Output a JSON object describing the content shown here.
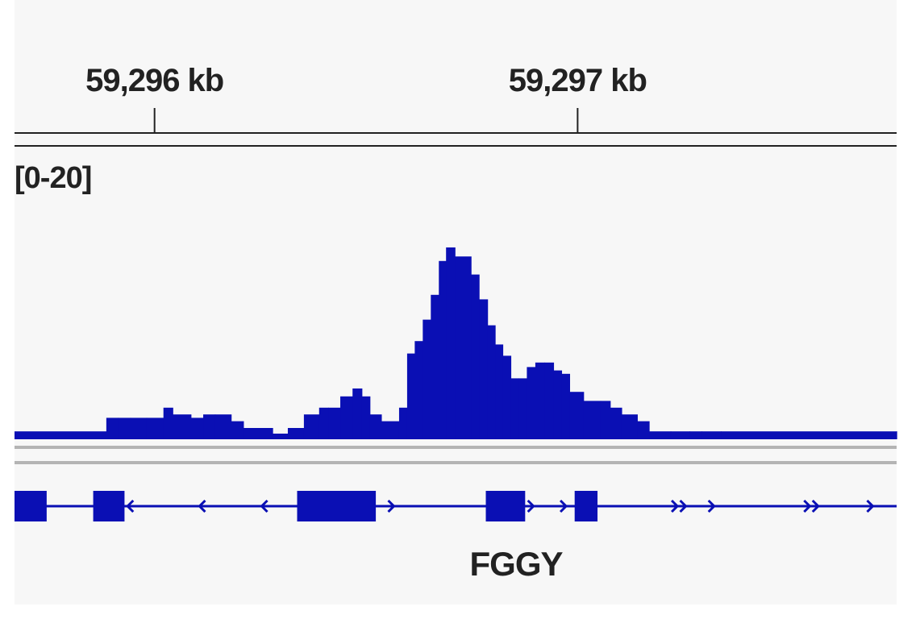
{
  "colors": {
    "track": "#0a0fb4",
    "ruler": "#222222",
    "divider": "#b4b4b4",
    "background": "#f7f7f7"
  },
  "ruler": {
    "ticks": [
      {
        "label": "59,296 kb",
        "position_kb": 59296
      },
      {
        "label": "59,297 kb",
        "position_kb": 59297
      }
    ]
  },
  "chart_data": {
    "type": "area",
    "data_range_label": "[0-20]",
    "ylim": [
      0,
      20
    ],
    "xlim_kb": [
      59295.669,
      59297.754
    ],
    "x_kb": [
      59295.669,
      59295.886,
      59295.914,
      59295.943,
      59295.981,
      59296.021,
      59296.043,
      59296.086,
      59296.115,
      59296.143,
      59296.181,
      59296.21,
      59296.239,
      59296.279,
      59296.315,
      59296.353,
      59296.389,
      59296.411,
      59296.439,
      59296.468,
      59296.49,
      59296.509,
      59296.536,
      59296.578,
      59296.597,
      59296.615,
      59296.634,
      59296.653,
      59296.672,
      59296.689,
      59296.71,
      59296.748,
      59296.767,
      59296.787,
      59296.805,
      59296.823,
      59296.842,
      59296.861,
      59296.88,
      59296.9,
      59296.922,
      59296.943,
      59296.962,
      59296.981,
      59297.014,
      59297.054,
      59297.077,
      59297.104,
      59297.141,
      59297.169,
      59297.22,
      59297.265,
      59297.293,
      59297.339,
      59297.754
    ],
    "y": [
      0.7,
      1.9,
      1.9,
      1.9,
      1.9,
      2.8,
      2.2,
      1.9,
      2.2,
      2.2,
      1.6,
      1.0,
      1.0,
      0.5,
      1.0,
      2.2,
      2.8,
      2.8,
      3.8,
      4.5,
      3.8,
      2.2,
      1.6,
      2.8,
      7.6,
      8.7,
      10.6,
      12.8,
      15.8,
      17.0,
      16.2,
      14.6,
      12.4,
      10.1,
      8.4,
      7.4,
      5.4,
      5.4,
      6.4,
      6.8,
      6.8,
      6.1,
      5.8,
      4.2,
      3.4,
      3.4,
      2.8,
      2.2,
      1.6,
      0.7,
      0.7,
      0.7,
      0.7,
      0.7,
      0.7
    ]
  },
  "gene_track": {
    "gene_name": "FGGY",
    "exons_kb": [
      [
        59295.669,
        59295.745
      ],
      [
        59295.855,
        59295.929
      ],
      [
        59296.337,
        59296.523
      ],
      [
        59296.783,
        59296.876
      ],
      [
        59296.993,
        59297.047
      ]
    ],
    "strand_marks": [
      {
        "kb": 59295.942,
        "glyph": "‹"
      },
      {
        "kb": 59296.112,
        "glyph": "‹"
      },
      {
        "kb": 59296.259,
        "glyph": "‹"
      },
      {
        "kb": 59296.56,
        "glyph": "›"
      },
      {
        "kb": 59296.89,
        "glyph": "›"
      },
      {
        "kb": 59296.967,
        "glyph": "›"
      },
      {
        "kb": 59297.23,
        "glyph": "›"
      },
      {
        "kb": 59297.25,
        "glyph": "›"
      },
      {
        "kb": 59297.317,
        "glyph": "›"
      },
      {
        "kb": 59297.543,
        "glyph": "›"
      },
      {
        "kb": 59297.563,
        "glyph": "›"
      },
      {
        "kb": 59297.692,
        "glyph": "›"
      }
    ]
  }
}
